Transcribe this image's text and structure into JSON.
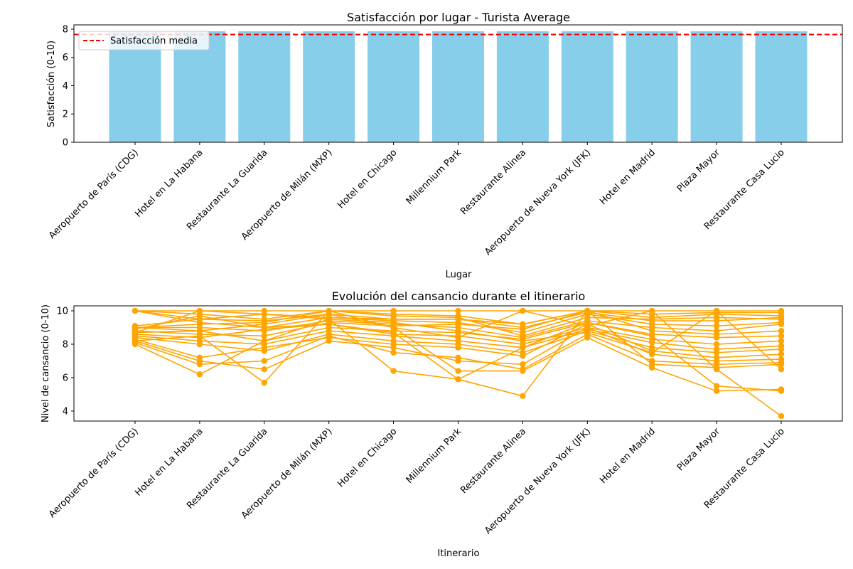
{
  "chart_data": [
    {
      "type": "bar",
      "title": "Satisfacción por lugar - Turista Average",
      "xlabel": "Lugar",
      "ylabel": "Satisfacción (0-10)",
      "ylim": [
        0,
        8.3
      ],
      "yticks": [
        0,
        2,
        4,
        6,
        8
      ],
      "categories": [
        "Aeropuerto de París (CDG)",
        "Hotel en La Habana",
        "Restaurante La Guarida",
        "Aeropuerto de Milán (MXP)",
        "Hotel en Chicago",
        "Millennium Park",
        "Restaurante Alinea",
        "Aeropuerto de Nueva York (JFK)",
        "Hotel en Madrid",
        "Plaza Mayor",
        "Restaurante Casa Lucio"
      ],
      "values": [
        7.85,
        7.85,
        7.85,
        7.85,
        7.85,
        7.85,
        7.85,
        7.85,
        7.85,
        7.85,
        7.85
      ],
      "bar_color": "#87ceeb",
      "reference_line": {
        "name": "Satisfacción media",
        "value": 7.62,
        "color": "#ff0000",
        "style": "dashed"
      },
      "legend": {
        "position": "upper-left",
        "entries": [
          "Satisfacción media"
        ]
      },
      "grid": false
    },
    {
      "type": "line",
      "title": "Evolución del cansancio durante el itinerario",
      "xlabel": "Itinerario",
      "ylabel": "Nivel de cansancio (0-10)",
      "ylim": [
        3.4,
        10.3
      ],
      "yticks": [
        4,
        6,
        8,
        10
      ],
      "categories": [
        "Aeropuerto de París (CDG)",
        "Hotel en La Habana",
        "Restaurante La Guarida",
        "Aeropuerto de Milán (MXP)",
        "Hotel en Chicago",
        "Millennium Park",
        "Restaurante Alinea",
        "Aeropuerto de Nueva York (JFK)",
        "Hotel en Madrid",
        "Plaza Mayor",
        "Restaurante Casa Lucio"
      ],
      "color": "#ffa500",
      "marker": "circle",
      "grid": false,
      "series": [
        {
          "values": [
            10.0,
            10.0,
            10.0,
            10.0,
            10.0,
            10.0,
            10.0,
            10.0,
            10.0,
            10.0,
            10.0
          ]
        },
        {
          "values": [
            10.0,
            9.8,
            9.5,
            10.0,
            9.8,
            9.7,
            9.2,
            10.0,
            9.8,
            9.9,
            9.9
          ]
        },
        {
          "values": [
            10.0,
            9.5,
            9.8,
            9.6,
            9.5,
            9.5,
            9.0,
            9.9,
            9.4,
            9.4,
            9.6
          ]
        },
        {
          "values": [
            10.0,
            9.3,
            9.0,
            9.6,
            9.4,
            9.3,
            8.7,
            9.8,
            9.2,
            9.1,
            9.3
          ]
        },
        {
          "values": [
            9.1,
            9.5,
            9.4,
            9.8,
            9.5,
            9.5,
            9.2,
            10.0,
            9.6,
            9.8,
            9.7
          ]
        },
        {
          "values": [
            9.0,
            9.2,
            9.3,
            10.0,
            9.7,
            9.6,
            8.5,
            9.6,
            9.5,
            9.6,
            9.5
          ]
        },
        {
          "values": [
            9.0,
            9.0,
            8.8,
            9.4,
            9.2,
            9.0,
            8.4,
            9.4,
            9.0,
            8.8,
            9.2
          ]
        },
        {
          "values": [
            8.8,
            8.6,
            8.5,
            9.3,
            9.1,
            9.2,
            8.9,
            10.0,
            8.8,
            8.6,
            8.8
          ]
        },
        {
          "values": [
            8.7,
            8.8,
            8.2,
            9.0,
            8.8,
            8.7,
            8.3,
            9.3,
            8.6,
            8.4,
            8.5
          ]
        },
        {
          "values": [
            8.6,
            8.4,
            8.9,
            9.2,
            8.6,
            8.5,
            8.0,
            9.0,
            8.3,
            8.0,
            8.2
          ]
        },
        {
          "values": [
            8.5,
            8.2,
            8.0,
            8.8,
            8.5,
            8.2,
            7.8,
            8.9,
            8.1,
            7.7,
            7.9
          ]
        },
        {
          "values": [
            8.4,
            8.0,
            7.6,
            8.6,
            8.2,
            8.0,
            7.5,
            8.8,
            7.8,
            7.5,
            7.7
          ]
        },
        {
          "values": [
            8.3,
            7.2,
            7.8,
            8.4,
            8.0,
            7.8,
            7.3,
            9.2,
            7.6,
            7.2,
            7.4
          ]
        },
        {
          "values": [
            8.2,
            7.0,
            6.5,
            8.2,
            7.8,
            7.0,
            6.8,
            9.0,
            7.4,
            7.0,
            7.1
          ]
        },
        {
          "values": [
            8.1,
            6.8,
            7.0,
            8.5,
            7.5,
            7.2,
            6.5,
            8.6,
            7.0,
            6.8,
            6.9
          ]
        },
        {
          "values": [
            8.0,
            6.2,
            8.2,
            9.5,
            6.4,
            5.9,
            4.9,
            10.0,
            6.8,
            6.6,
            6.8
          ]
        },
        {
          "values": [
            8.2,
            8.5,
            5.7,
            10.0,
            9.0,
            6.4,
            6.4,
            8.4,
            6.6,
            5.2,
            5.3
          ]
        },
        {
          "values": [
            9.0,
            8.8,
            9.2,
            9.8,
            9.0,
            8.4,
            10.0,
            9.1,
            10.0,
            6.5,
            3.7
          ]
        },
        {
          "values": [
            8.9,
            9.7,
            9.0,
            9.2,
            8.7,
            5.9,
            7.8,
            9.3,
            8.5,
            5.5,
            5.2
          ]
        },
        {
          "values": [
            8.7,
            10.0,
            9.8,
            9.5,
            9.3,
            8.8,
            8.2,
            8.7,
            7.5,
            10.0,
            6.5
          ]
        }
      ]
    }
  ]
}
